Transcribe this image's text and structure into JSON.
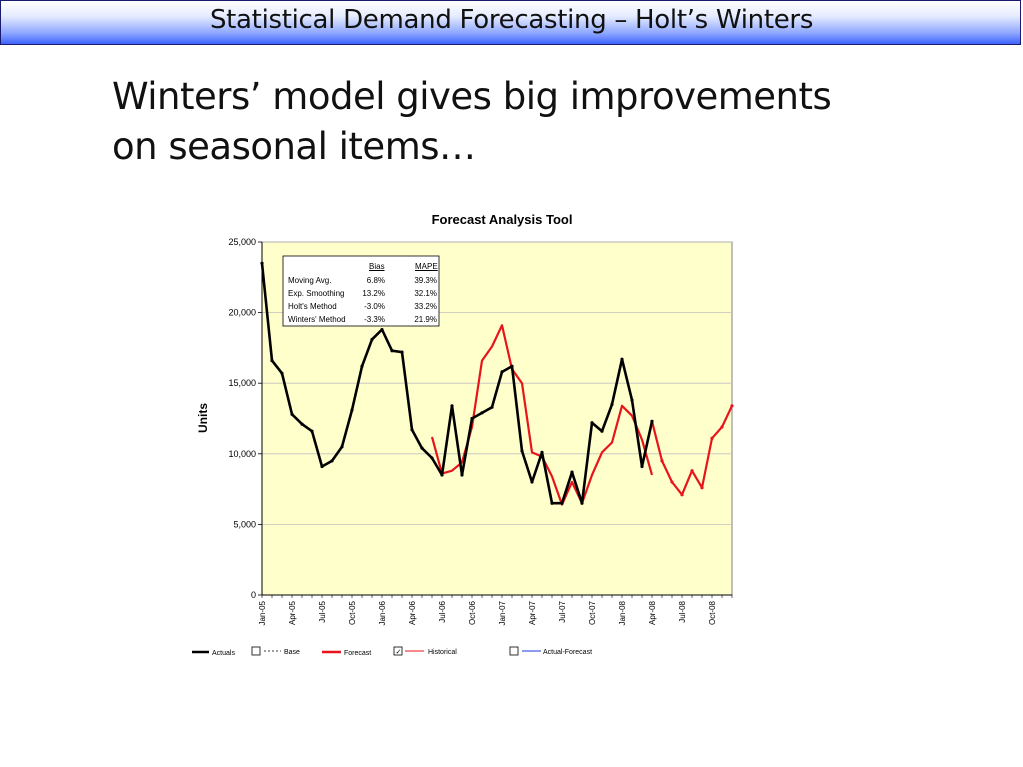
{
  "slide": {
    "title": "Statistical Demand Forecasting – Holt’s Winters",
    "headline_line1": "Winters’ model gives big improvements",
    "headline_line2": "on seasonal items…"
  },
  "stats_table": {
    "headers": [
      "Bias",
      "MAPE"
    ],
    "rows": [
      {
        "method": "Moving Avg.",
        "bias": "6.8%",
        "mape": "39.3%"
      },
      {
        "method": "Exp. Smoothing",
        "bias": "13.2%",
        "mape": "32.1%"
      },
      {
        "method": "Holt's Method",
        "bias": "-3.0%",
        "mape": "33.2%"
      },
      {
        "method": "Winters' Method",
        "bias": "-3.3%",
        "mape": "21.9%"
      }
    ]
  },
  "legend": {
    "actuals": "Actuals",
    "base": "Base",
    "forecast": "Forecast",
    "historical": "Historical",
    "actual_forecast": "Actual-Forecast",
    "historical_checked": true,
    "base_checked": false,
    "actual_forecast_checked": false
  },
  "colors": {
    "actuals": "#000000",
    "forecast": "#e8141c",
    "actual_forecast": "#1a3ad8",
    "plot_bg": "#ffffcc",
    "grid": "#c0c0c0"
  },
  "chart_data": {
    "type": "line",
    "title": "Forecast Analysis Tool",
    "ylabel": "Units",
    "xlabel": "",
    "ylim": [
      0,
      25000
    ],
    "yticks": [
      0,
      5000,
      10000,
      15000,
      20000,
      25000
    ],
    "ytick_labels": [
      "0",
      "5,000",
      "10,000",
      "15,000",
      "20,000",
      "25,000"
    ],
    "grid": true,
    "legend_position": "bottom",
    "x": [
      "Jan-05",
      "Feb-05",
      "Mar-05",
      "Apr-05",
      "May-05",
      "Jun-05",
      "Jul-05",
      "Aug-05",
      "Sep-05",
      "Oct-05",
      "Nov-05",
      "Dec-05",
      "Jan-06",
      "Feb-06",
      "Mar-06",
      "Apr-06",
      "May-06",
      "Jun-06",
      "Jul-06",
      "Aug-06",
      "Sep-06",
      "Oct-06",
      "Nov-06",
      "Dec-06",
      "Jan-07",
      "Feb-07",
      "Mar-07",
      "Apr-07",
      "May-07",
      "Jun-07",
      "Jul-07",
      "Aug-07",
      "Sep-07",
      "Oct-07",
      "Nov-07",
      "Dec-07",
      "Jan-08",
      "Feb-08",
      "Mar-08",
      "Apr-08",
      "May-08",
      "Jun-08",
      "Jul-08",
      "Aug-08",
      "Sep-08",
      "Oct-08",
      "Nov-08",
      "Dec-08"
    ],
    "xtick_labels": [
      "Jan-05",
      "Apr-05",
      "Jul-05",
      "Oct-05",
      "Jan-06",
      "Apr-06",
      "Jul-06",
      "Oct-06",
      "Jan-07",
      "Apr-07",
      "Jul-07",
      "Oct-07",
      "Jan-08",
      "Apr-08",
      "Jul-08",
      "Oct-08"
    ],
    "series": [
      {
        "name": "Actuals",
        "values": [
          23500,
          16600,
          15700,
          12800,
          12100,
          11600,
          9100,
          9500,
          10500,
          13100,
          16200,
          18100,
          18800,
          17300,
          17200,
          11700,
          10400,
          9700,
          8500,
          13400,
          8500,
          12500,
          12900,
          13300,
          15800,
          16200,
          10200,
          8000,
          10100,
          6500,
          6500,
          8700,
          6500,
          12200,
          11600,
          13500,
          16700,
          13800,
          9100,
          12300,
          null,
          null,
          null,
          null,
          null,
          null,
          null,
          null
        ]
      },
      {
        "name": "Forecast",
        "values": [
          null,
          null,
          null,
          null,
          null,
          null,
          null,
          null,
          null,
          null,
          null,
          null,
          null,
          null,
          null,
          null,
          null,
          11200,
          8600,
          8800,
          9400,
          11900,
          16600,
          17600,
          19100,
          16000,
          15000,
          10100,
          9800,
          8400,
          6400,
          8000,
          6500,
          8500,
          10100,
          10800,
          13400,
          12700,
          11000,
          8500,
          null,
          null,
          null,
          null,
          null,
          null,
          null,
          null
        ]
      },
      {
        "name": "Forecast-future",
        "values": [
          null,
          null,
          null,
          null,
          null,
          null,
          null,
          null,
          null,
          null,
          null,
          null,
          null,
          null,
          null,
          null,
          null,
          null,
          null,
          null,
          null,
          null,
          null,
          null,
          null,
          null,
          null,
          null,
          null,
          null,
          null,
          null,
          null,
          null,
          null,
          null,
          null,
          null,
          null,
          12300,
          9500,
          8000,
          7100,
          8800,
          7600,
          11100,
          11900,
          13400
        ]
      }
    ]
  }
}
